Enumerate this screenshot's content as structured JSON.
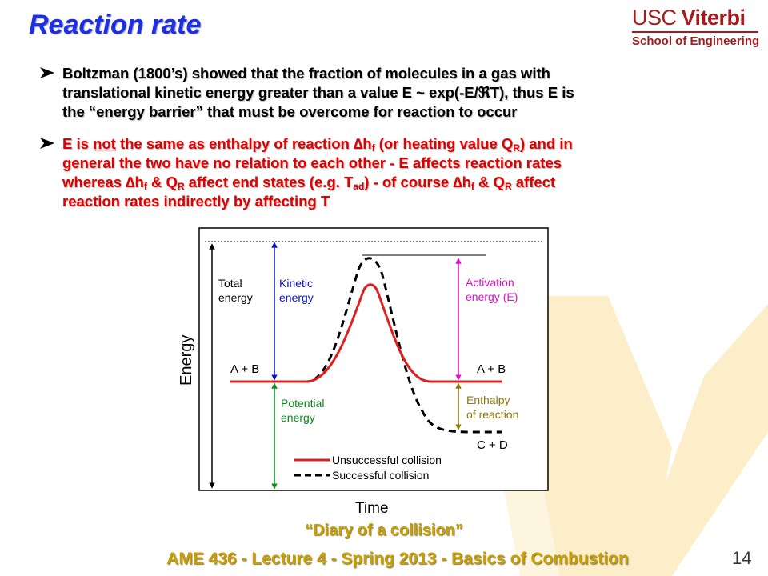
{
  "slide": {
    "title": "Reaction rate",
    "logo": {
      "line1_a": "USC",
      "line1_b": "Viterbi",
      "line2": "School of Engineering",
      "color": "#a51c1c"
    },
    "bullets": [
      {
        "lines": [
          "Boltzman (1800’s) showed that the fraction of molecules in a gas with",
          "translational kinetic energy greater than a value E ~ exp(-E/ℜT), thus E is",
          "the “energy barrier” that must be overcome for reaction to occur"
        ]
      },
      {
        "l1": {
          "a": "E is ",
          "u": "not",
          "b": " the same as enthalpy of reaction ∆h",
          "c": "f",
          "d": " (or heating value Q",
          "e": "R",
          "f": ") and in"
        },
        "l2": "general the two have no relation to each other - E affects reaction rates",
        "l3": {
          "a": "whereas ∆h",
          "b": "f",
          "c": " & Q",
          "d": "R",
          "e": " affect end states (e.g. T",
          "f": "ad",
          "g": ") - of course ∆h",
          "h": "f",
          "i": " & Q",
          "j": "R",
          "k": " affect"
        },
        "l4": "reaction rates indirectly by affecting T"
      }
    ],
    "caption": "“Diary of a collision”",
    "footer": "AME 436 - Lecture 4 - Spring 2013 - Basics of Combustion",
    "page_number": "14"
  },
  "colors": {
    "title": "#1d2ee8",
    "bullet2": "#e00000",
    "footer": "#c8a000",
    "watermark": "#fbeec9",
    "kinetic": "#0a10c8",
    "potential": "#0a8a1a",
    "activation": "#e010c8",
    "enthalpy": "#8a7a10",
    "unsuccessful": "#e02020",
    "successful": "#000000"
  },
  "diagram": {
    "y_axis_label": "Energy",
    "x_axis_label": "Time",
    "labels": {
      "total_energy": [
        "Total",
        "energy"
      ],
      "kinetic_energy": [
        "Kinetic",
        "energy"
      ],
      "potential_energy": [
        "Potential",
        "energy"
      ],
      "activation_energy": [
        "Activation",
        "energy (E)"
      ],
      "enthalpy_of_reaction": [
        "Enthalpy",
        "of reaction"
      ],
      "reactants_left": "A + B",
      "reactants_right": "A + B",
      "products": "C + D"
    },
    "legend": [
      {
        "name": "Unsuccessful collision",
        "color": "#e02020",
        "style": "solid"
      },
      {
        "name": "Successful collision",
        "color": "#000000",
        "style": "dashed"
      }
    ]
  }
}
